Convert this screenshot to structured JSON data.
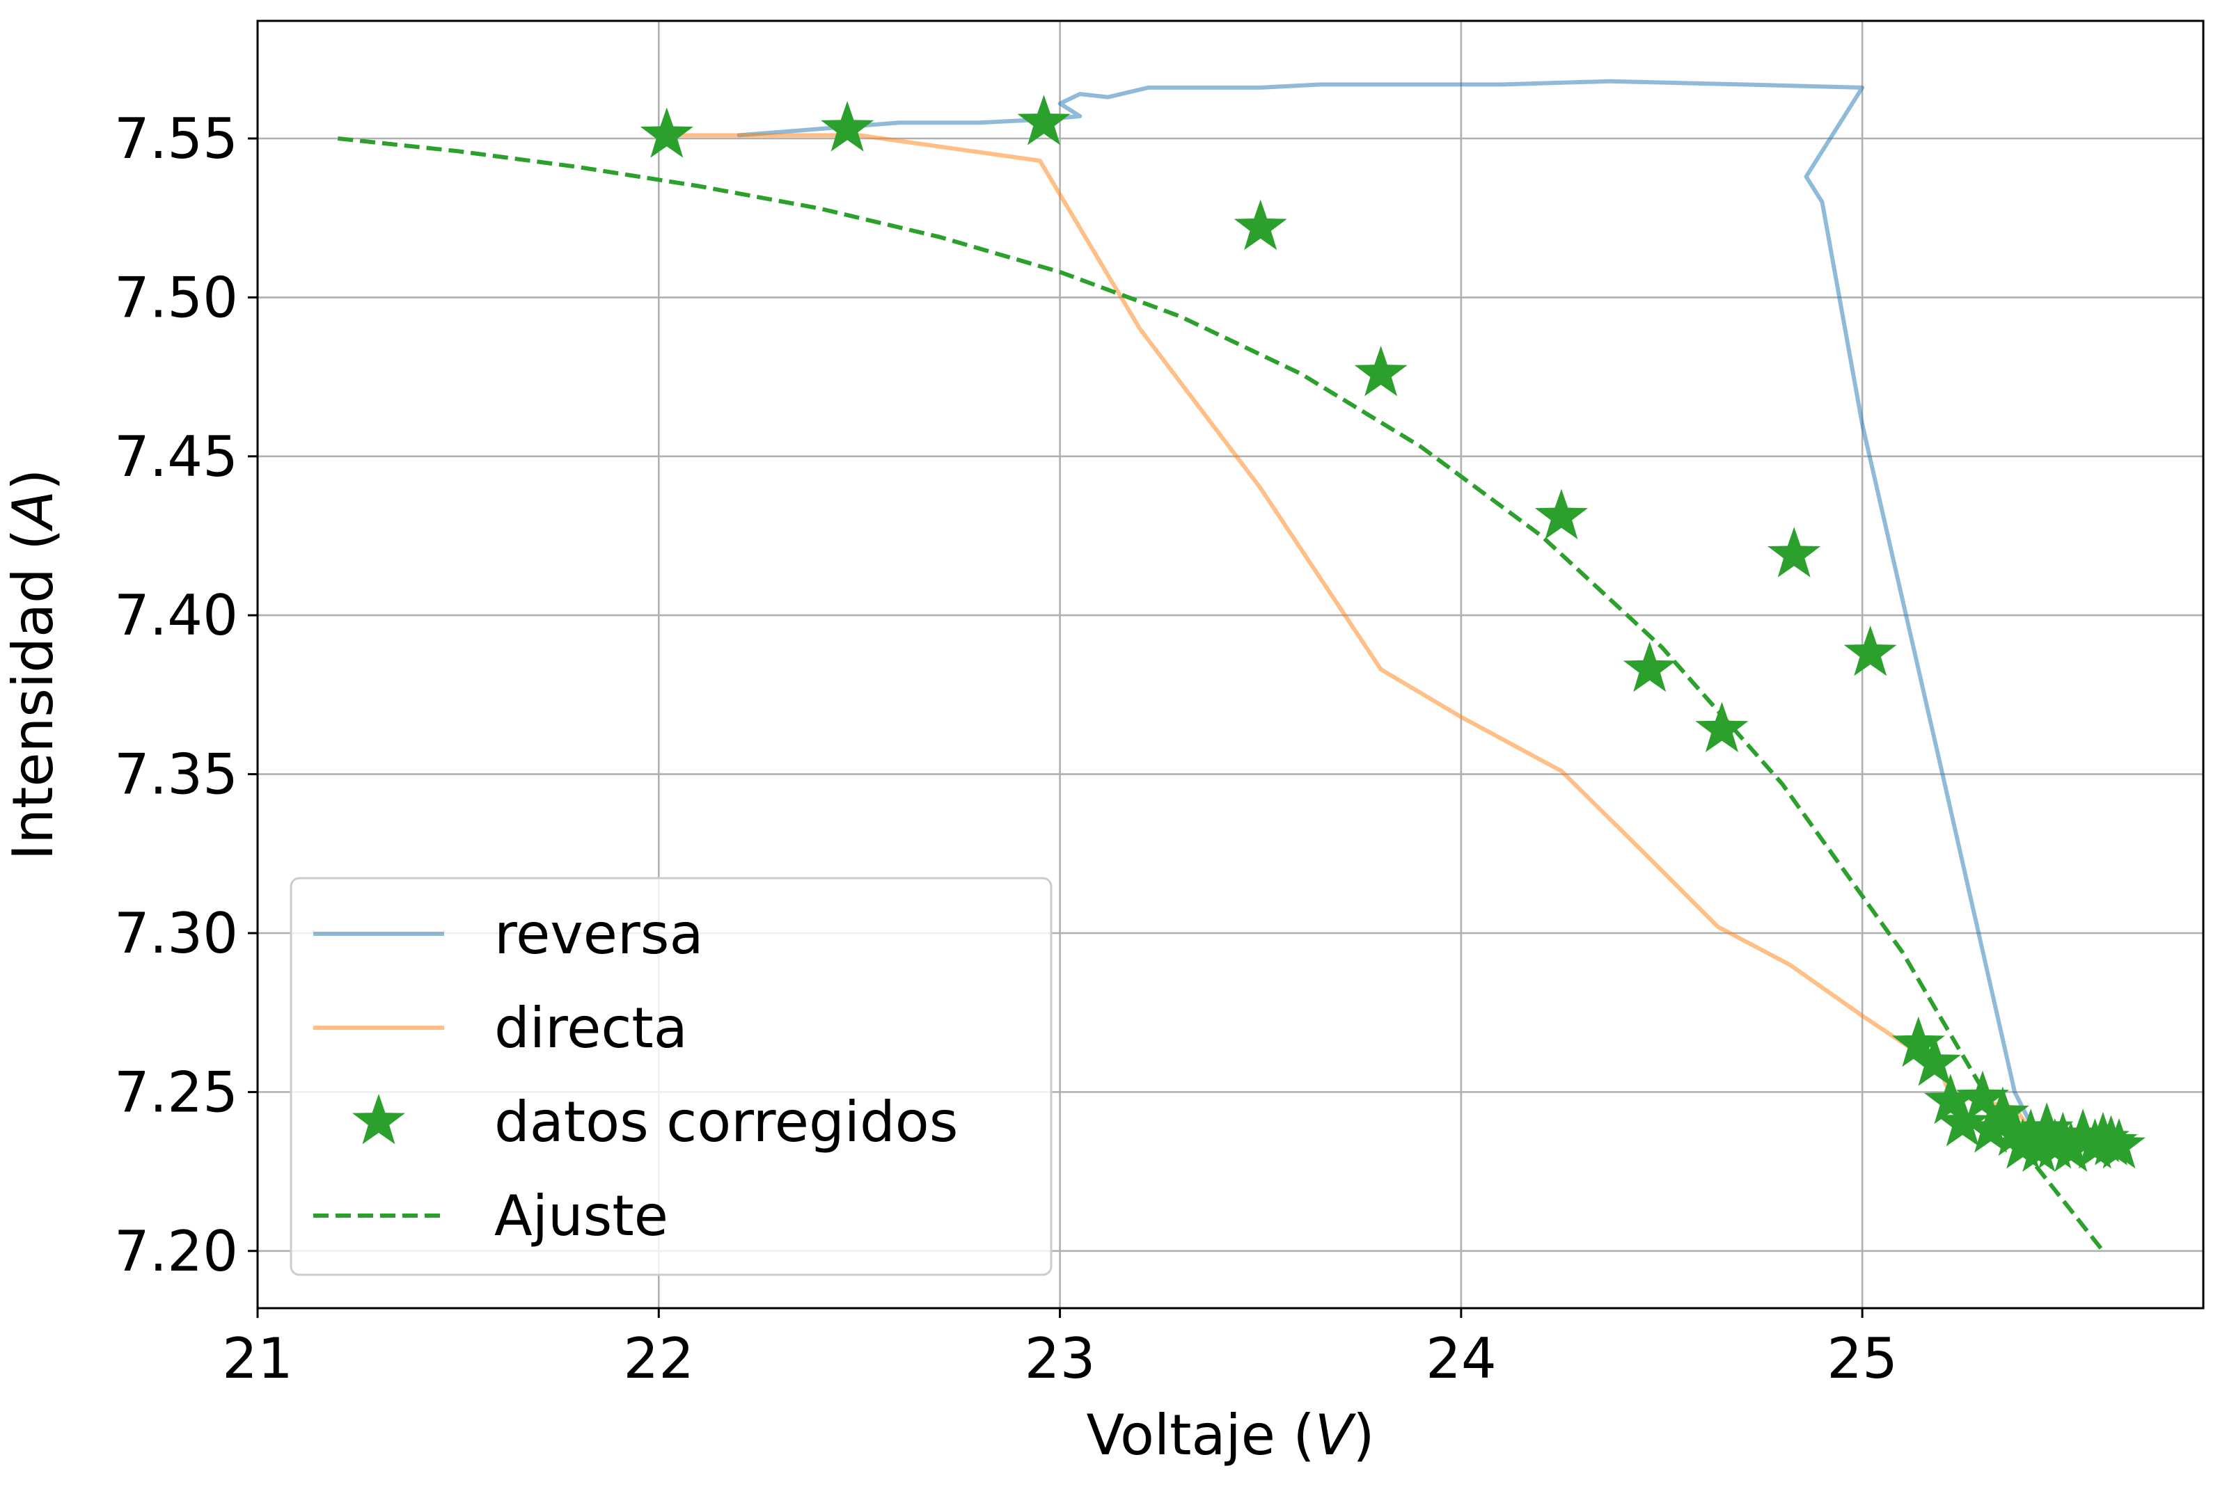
{
  "chart_data": {
    "type": "line",
    "title": "",
    "xlabel": "Voltaje",
    "xlabel_unit": "V",
    "ylabel": "Intensidad",
    "ylabel_unit": "A",
    "xlim": [
      21.0,
      25.85
    ],
    "ylim": [
      7.182,
      7.587
    ],
    "xticks": [
      21,
      22,
      23,
      24,
      25
    ],
    "yticks": [
      7.2,
      7.25,
      7.3,
      7.35,
      7.4,
      7.45,
      7.5,
      7.55
    ],
    "xtick_labels": [
      "21",
      "22",
      "23",
      "24",
      "25"
    ],
    "ytick_labels": [
      "7.20",
      "7.25",
      "7.30",
      "7.35",
      "7.40",
      "7.45",
      "7.50",
      "7.55"
    ],
    "grid": true,
    "legend_position": "lower-left",
    "series": [
      {
        "name": "reversa",
        "kind": "line",
        "color": "#1f77b4",
        "x": [
          22.2,
          22.4,
          22.6,
          22.8,
          22.96,
          23.05,
          23.0,
          23.05,
          23.12,
          23.22,
          23.5,
          23.65,
          23.85,
          24.1,
          24.37,
          24.7,
          25.0,
          24.86,
          24.9,
          25.0,
          25.2,
          25.38,
          25.42,
          25.4,
          25.45,
          25.5
        ],
        "y": [
          7.551,
          7.553,
          7.555,
          7.555,
          7.556,
          7.557,
          7.561,
          7.564,
          7.563,
          7.566,
          7.566,
          7.567,
          7.567,
          7.567,
          7.568,
          7.567,
          7.566,
          7.538,
          7.53,
          7.46,
          7.35,
          7.25,
          7.24,
          7.236,
          7.234,
          7.233
        ]
      },
      {
        "name": "directa",
        "kind": "line",
        "color": "#ff7f0e",
        "x": [
          22.0,
          22.5,
          22.95,
          23.2,
          23.5,
          23.8,
          24.0,
          24.25,
          24.45,
          24.64,
          24.82,
          25.0,
          25.13,
          25.2,
          25.22,
          25.3,
          25.38,
          25.42,
          25.5,
          25.6
        ],
        "y": [
          7.551,
          7.551,
          7.543,
          7.49,
          7.44,
          7.383,
          7.368,
          7.351,
          7.326,
          7.302,
          7.29,
          7.274,
          7.263,
          7.255,
          7.249,
          7.247,
          7.245,
          7.238,
          7.236,
          7.235
        ]
      },
      {
        "name": "datos corregidos",
        "kind": "scatter",
        "marker": "star",
        "color": "#2ca02c",
        "x": [
          22.02,
          22.47,
          22.96,
          23.5,
          23.8,
          24.25,
          24.47,
          24.65,
          24.83,
          25.02,
          25.14,
          25.18,
          25.22,
          25.25,
          25.3,
          25.32,
          25.35,
          25.38,
          25.4,
          25.42,
          25.44,
          25.46,
          25.48,
          25.5,
          25.52,
          25.55,
          25.58,
          25.6,
          25.62,
          25.64
        ],
        "y": [
          7.551,
          7.553,
          7.555,
          7.522,
          7.476,
          7.431,
          7.383,
          7.364,
          7.419,
          7.388,
          7.265,
          7.259,
          7.247,
          7.24,
          7.248,
          7.238,
          7.243,
          7.237,
          7.233,
          7.236,
          7.232,
          7.238,
          7.233,
          7.235,
          7.232,
          7.236,
          7.233,
          7.235,
          7.234,
          7.233
        ]
      },
      {
        "name": "Ajuste",
        "kind": "line",
        "dash": "dashed",
        "color": "#2ca02c",
        "x": [
          21.2,
          21.5,
          21.8,
          22.1,
          22.4,
          22.7,
          23.0,
          23.3,
          23.6,
          23.9,
          24.2,
          24.5,
          24.8,
          25.1,
          25.35,
          25.6
        ],
        "y": [
          7.55,
          7.546,
          7.541,
          7.535,
          7.528,
          7.519,
          7.508,
          7.494,
          7.476,
          7.453,
          7.425,
          7.39,
          7.347,
          7.294,
          7.24,
          7.2
        ]
      }
    ]
  }
}
